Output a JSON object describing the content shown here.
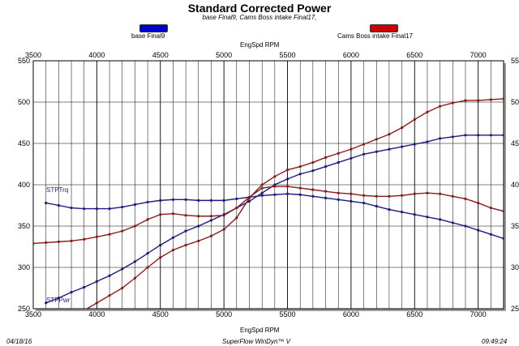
{
  "title": "Standard Corrected Power",
  "subtitle": "base Final9, Cams Boss intake Final17,",
  "legend": [
    {
      "label": "base Final9",
      "color": "#0000cc"
    },
    {
      "label": "Cams Boss intake Final17",
      "color": "#cc0000"
    }
  ],
  "axis_titles": {
    "top": "EngSpd RPM",
    "bottom": "EngSpd RPM"
  },
  "footer": {
    "date": "04/18/16",
    "software": "SuperFlow WinDyn™ V",
    "time": "09:49:24"
  },
  "curve_labels": {
    "torque": "STPTrq",
    "power": "STPPwr"
  },
  "chart_data": {
    "type": "line",
    "title": "Standard Corrected Power",
    "xlabel": "EngSpd RPM",
    "ylabel": "",
    "xlim": [
      3500,
      7200
    ],
    "ylim": [
      250,
      550
    ],
    "x_ticks": [
      3500,
      4000,
      4500,
      5000,
      5500,
      6000,
      6500,
      7000
    ],
    "y_ticks": [
      250,
      300,
      350,
      400,
      450,
      500,
      550
    ],
    "grid": true,
    "x": [
      3500,
      3600,
      3700,
      3800,
      3900,
      4000,
      4100,
      4200,
      4300,
      4400,
      4500,
      4600,
      4700,
      4800,
      4900,
      5000,
      5100,
      5200,
      5300,
      5400,
      5500,
      5600,
      5700,
      5800,
      5900,
      6000,
      6100,
      6200,
      6300,
      6400,
      6500,
      6600,
      6700,
      6800,
      6900,
      7000,
      7100,
      7200
    ],
    "series": [
      {
        "name": "base Final9",
        "quantity": "STPTrq",
        "color": "#1a1a80",
        "values": [
          null,
          378,
          375,
          372,
          371,
          371,
          371,
          373,
          376,
          379,
          381,
          382,
          382,
          381,
          381,
          381,
          383,
          385,
          387,
          388,
          389,
          388,
          386,
          384,
          382,
          380,
          378,
          374,
          370,
          367,
          364,
          361,
          358,
          354,
          350,
          345,
          340,
          335
        ]
      },
      {
        "name": "base Final9",
        "quantity": "STPPwr",
        "color": "#1a1a80",
        "values": [
          null,
          257,
          263,
          270,
          276,
          283,
          290,
          298,
          307,
          317,
          327,
          336,
          344,
          350,
          357,
          364,
          372,
          380,
          390,
          400,
          407,
          413,
          417,
          422,
          427,
          432,
          437,
          440,
          443,
          446,
          449,
          452,
          456,
          458,
          460,
          460,
          460,
          460
        ]
      },
      {
        "name": "Cams Boss intake Final17",
        "quantity": "STPTrq",
        "color": "#8b1a1a",
        "values": [
          329,
          330,
          331,
          332,
          334,
          337,
          340,
          344,
          350,
          358,
          364,
          365,
          363,
          362,
          362,
          363,
          372,
          385,
          396,
          398,
          398,
          396,
          394,
          392,
          390,
          389,
          387,
          386,
          386,
          387,
          389,
          390,
          389,
          386,
          383,
          378,
          372,
          368
        ]
      },
      {
        "name": "Cams Boss intake Final17",
        "quantity": "STPPwr",
        "color": "#8b1a1a",
        "values": [
          null,
          null,
          null,
          null,
          248,
          257,
          266,
          275,
          287,
          300,
          312,
          321,
          327,
          332,
          338,
          346,
          360,
          384,
          400,
          410,
          418,
          422,
          427,
          433,
          438,
          443,
          449,
          455,
          461,
          469,
          479,
          488,
          495,
          499,
          502,
          502,
          503,
          504
        ]
      }
    ]
  }
}
